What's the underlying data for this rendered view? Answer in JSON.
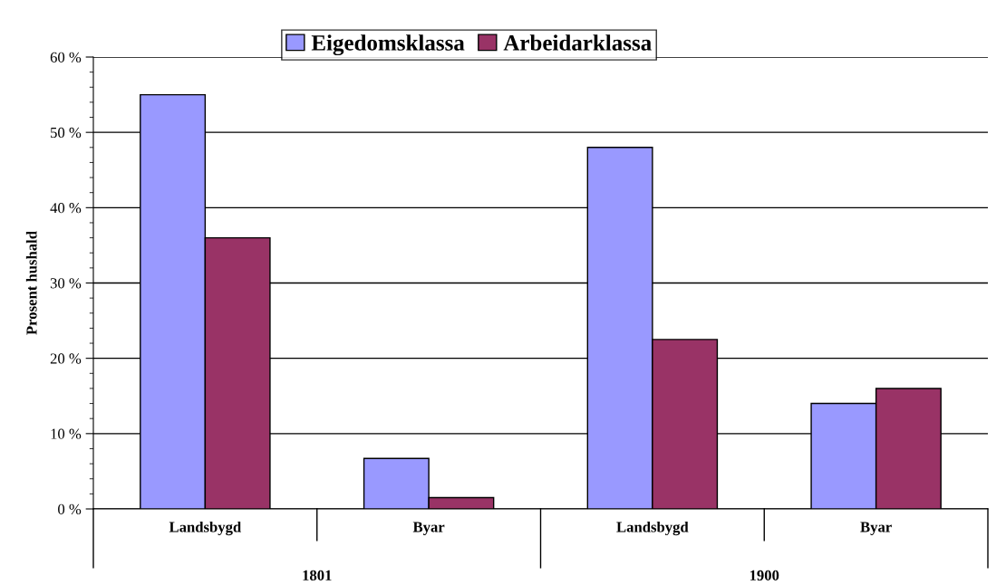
{
  "chart_data": {
    "type": "bar",
    "ylabel": "Prosent hushald",
    "categories": [
      "Landsbygd",
      "Byar",
      "Landsbygd",
      "Byar"
    ],
    "series": [
      {
        "name": "Eigedomsklassa",
        "color": "#9999ff",
        "values": [
          55,
          6.7,
          48,
          14
        ]
      },
      {
        "name": "Arbeidarklassa",
        "color": "#993366",
        "values": [
          36,
          1.5,
          22.5,
          16
        ]
      }
    ],
    "annotations": [
      "1801",
      "1900"
    ],
    "ylim": [
      0,
      60
    ],
    "yticks": [
      {
        "value": 0,
        "label": "0 %"
      },
      {
        "value": 10,
        "label": "10 %"
      },
      {
        "value": 20,
        "label": "20 %"
      },
      {
        "value": 30,
        "label": "30 %"
      },
      {
        "value": 40,
        "label": "40 %"
      },
      {
        "value": 50,
        "label": "50 %"
      },
      {
        "value": 60,
        "label": "60 %"
      }
    ],
    "grid": "y",
    "legend": "top"
  }
}
